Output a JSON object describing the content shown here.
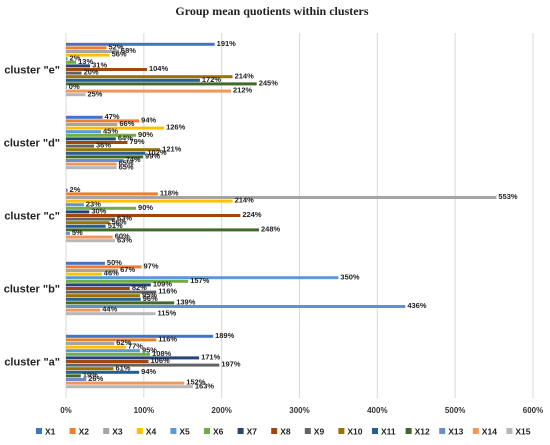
{
  "chart_data": {
    "type": "bar",
    "orientation": "horizontal",
    "title": "Group mean quotients within clusters",
    "xlabel": "",
    "ylabel": "",
    "xlim": [
      0,
      600
    ],
    "xticks": [
      "0%",
      "100%",
      "200%",
      "300%",
      "400%",
      "500%",
      "600%"
    ],
    "xtick_values": [
      0,
      100,
      200,
      300,
      400,
      500,
      600
    ],
    "grid": true,
    "legend_position": "bottom",
    "categories": [
      "cluster \"e\"",
      "cluster \"d\"",
      "cluster \"c\"",
      "cluster \"b\"",
      "cluster \"a\""
    ],
    "series": [
      {
        "name": "X1",
        "color": "#4472C4",
        "values": [
          191,
          47,
          2,
          50,
          189
        ]
      },
      {
        "name": "X2",
        "color": "#ED7D31",
        "values": [
          52,
          94,
          118,
          97,
          116
        ]
      },
      {
        "name": "X3",
        "color": "#A5A5A5",
        "values": [
          68,
          66,
          553,
          67,
          62
        ]
      },
      {
        "name": "X4",
        "color": "#FFC000",
        "values": [
          56,
          126,
          214,
          46,
          77
        ]
      },
      {
        "name": "X5",
        "color": "#5B9BD5",
        "values": [
          2,
          45,
          23,
          350,
          95
        ]
      },
      {
        "name": "X6",
        "color": "#70AD47",
        "values": [
          13,
          90,
          90,
          157,
          108
        ]
      },
      {
        "name": "X7",
        "color": "#264478",
        "values": [
          31,
          64,
          30,
          109,
          171
        ]
      },
      {
        "name": "X8",
        "color": "#9E480E",
        "values": [
          104,
          79,
          224,
          82,
          106
        ]
      },
      {
        "name": "X9",
        "color": "#636363",
        "values": [
          20,
          36,
          63,
          116,
          197
        ]
      },
      {
        "name": "X10",
        "color": "#997300",
        "values": [
          214,
          121,
          56,
          95,
          61
        ]
      },
      {
        "name": "X11",
        "color": "#255E91",
        "values": [
          172,
          102,
          51,
          96,
          94
        ]
      },
      {
        "name": "X12",
        "color": "#43682B",
        "values": [
          245,
          99,
          248,
          139,
          19
        ]
      },
      {
        "name": "X13",
        "color": "#698ED0",
        "values": [
          0,
          74,
          5,
          436,
          26
        ]
      },
      {
        "name": "X14",
        "color": "#F1975A",
        "values": [
          212,
          65,
          60,
          44,
          152
        ]
      },
      {
        "name": "X15",
        "color": "#B7B7B7",
        "values": [
          25,
          65,
          63,
          115,
          163
        ]
      }
    ],
    "data_labels": [
      [
        "191%",
        "52%",
        "68%",
        "56%",
        "2%",
        "13%",
        "31%",
        "104%",
        "20%",
        "214%",
        "172%",
        "245%",
        "0%",
        "212%",
        "25%"
      ],
      [
        "47%",
        "94%",
        "66%",
        "126%",
        "45%",
        "90%",
        "64%",
        "79%",
        "36%",
        "121%",
        "102%",
        "99%",
        "74%",
        "65%",
        "65%"
      ],
      [
        "2%",
        "118%",
        "553%",
        "214%",
        "23%",
        "90%",
        "30%",
        "224%",
        "63%",
        "56%",
        "51%",
        "248%",
        "5%",
        "60%",
        "63%"
      ],
      [
        "50%",
        "97%",
        "67%",
        "46%",
        "350%",
        "157%",
        "109%",
        "82%",
        "116%",
        "95%",
        "96%",
        "139%",
        "436%",
        "44%",
        "115%"
      ],
      [
        "189%",
        "116%",
        "62%",
        "77%",
        "95%",
        "108%",
        "171%",
        "106%",
        "197%",
        "61%",
        "94%",
        "19%",
        "26%",
        "152%",
        "163%"
      ]
    ]
  }
}
